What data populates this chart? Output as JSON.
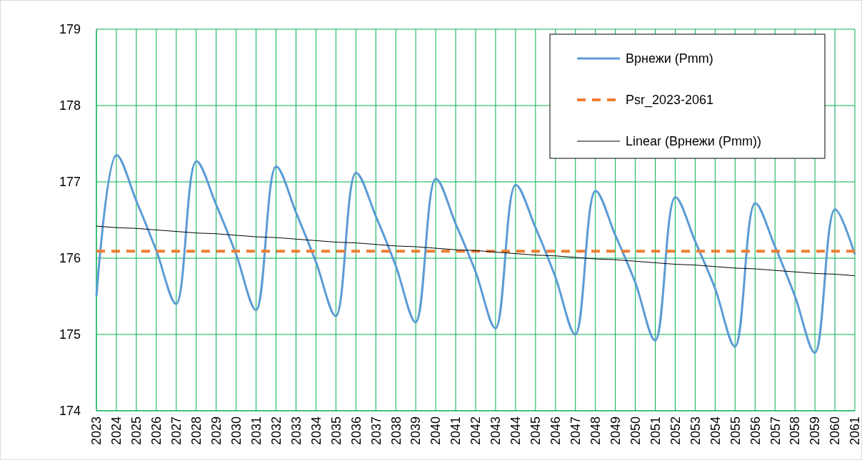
{
  "chart_data": {
    "type": "line",
    "categories": [
      "2023",
      "2024",
      "2025",
      "2026",
      "2027",
      "2028",
      "2029",
      "2030",
      "2031",
      "2032",
      "2033",
      "2034",
      "2035",
      "2036",
      "2037",
      "2038",
      "2039",
      "2040",
      "2041",
      "2042",
      "2043",
      "2044",
      "2045",
      "2046",
      "2047",
      "2048",
      "2049",
      "2050",
      "2051",
      "2052",
      "2053",
      "2054",
      "2055",
      "2056",
      "2057",
      "2058",
      "2059",
      "2060",
      "2061"
    ],
    "series": [
      {
        "name": "Врнежи (Pmm)",
        "color": "#5b9bd5",
        "values": [
          175.5,
          177.35,
          176.75,
          176.1,
          175.4,
          177.27,
          176.7,
          176.05,
          175.32,
          177.2,
          176.6,
          175.95,
          175.24,
          177.12,
          176.55,
          175.9,
          175.16,
          177.04,
          176.45,
          175.82,
          175.08,
          176.96,
          176.4,
          175.75,
          175.0,
          176.88,
          176.3,
          175.68,
          174.92,
          176.8,
          176.22,
          175.6,
          174.84,
          176.72,
          176.15,
          175.5,
          174.76,
          176.64,
          176.05
        ]
      },
      {
        "name": "Psr_2023-2061",
        "color": "#ed7d31",
        "line_style": "dashed",
        "values": [
          176.09,
          176.09,
          176.09,
          176.09,
          176.09,
          176.09,
          176.09,
          176.09,
          176.09,
          176.09,
          176.09,
          176.09,
          176.09,
          176.09,
          176.09,
          176.09,
          176.09,
          176.09,
          176.09,
          176.09,
          176.09,
          176.09,
          176.09,
          176.09,
          176.09,
          176.09,
          176.09,
          176.09,
          176.09,
          176.09,
          176.09,
          176.09,
          176.09,
          176.09,
          176.09,
          176.09,
          176.09,
          176.09,
          176.09
        ]
      },
      {
        "name": "Linear (Врнежи (Pmm))",
        "color": "#000000",
        "values": [
          176.42,
          176.4,
          176.39,
          176.37,
          176.35,
          176.33,
          176.32,
          176.3,
          176.28,
          176.27,
          176.25,
          176.23,
          176.21,
          176.2,
          176.18,
          176.16,
          176.15,
          176.13,
          176.11,
          176.1,
          176.08,
          176.06,
          176.04,
          176.03,
          176.01,
          175.99,
          175.98,
          175.96,
          175.94,
          175.92,
          175.91,
          175.89,
          175.87,
          175.86,
          175.84,
          175.82,
          175.8,
          175.79,
          175.77
        ]
      }
    ],
    "ylim": [
      174,
      179
    ],
    "yticks": [
      174,
      175,
      176,
      177,
      178,
      179
    ],
    "grid": true,
    "legend": "top right",
    "marker": "none"
  }
}
